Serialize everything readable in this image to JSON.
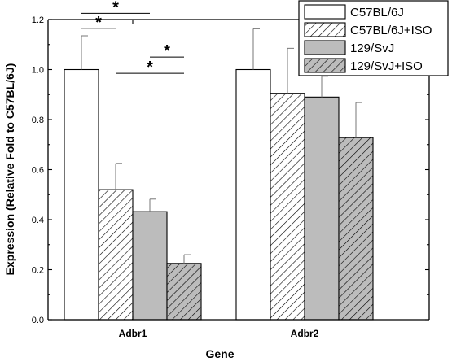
{
  "chart_data": {
    "type": "bar",
    "xlabel": "Gene",
    "ylabel": "Expression (Relative Fold to C57BL/6J)",
    "ylim": [
      0,
      1.2
    ],
    "yticks": [
      "0.0",
      "0.2",
      "0.4",
      "0.6",
      "0.8",
      "1.0",
      "1.2"
    ],
    "categories": [
      "Adbr1",
      "Adbr2"
    ],
    "legend_position": "top-right",
    "series": [
      {
        "name": "C57BL/6J",
        "fill": "plain-white",
        "color": "#ffffff",
        "values": [
          1.0,
          1.0
        ],
        "errors": [
          0.135,
          0.163
        ]
      },
      {
        "name": "C57BL/6J+ISO",
        "fill": "hatch-white",
        "color": "#ffffff",
        "values": [
          0.52,
          0.905
        ],
        "errors": [
          0.105,
          0.18
        ]
      },
      {
        "name": "129/SvJ",
        "fill": "plain-gray",
        "color": "#bcbcbc",
        "values": [
          0.432,
          0.89
        ],
        "errors": [
          0.05,
          0.083
        ]
      },
      {
        "name": "129/SvJ+ISO",
        "fill": "hatch-gray",
        "color": "#bcbcbc",
        "values": [
          0.225,
          0.728
        ],
        "errors": [
          0.035,
          0.14
        ]
      }
    ],
    "significance": [
      {
        "label": "*",
        "from": [
          0,
          0
        ],
        "to": [
          0,
          2
        ],
        "y": 1.225
      },
      {
        "label": "*",
        "from": [
          0,
          0
        ],
        "to": [
          0,
          1
        ],
        "y": 1.165
      },
      {
        "label": "*",
        "from": [
          0,
          2
        ],
        "to": [
          0,
          3
        ],
        "y": 1.05
      },
      {
        "label": "*",
        "from": [
          0,
          1
        ],
        "to": [
          0,
          3
        ],
        "y": 0.985
      }
    ]
  }
}
